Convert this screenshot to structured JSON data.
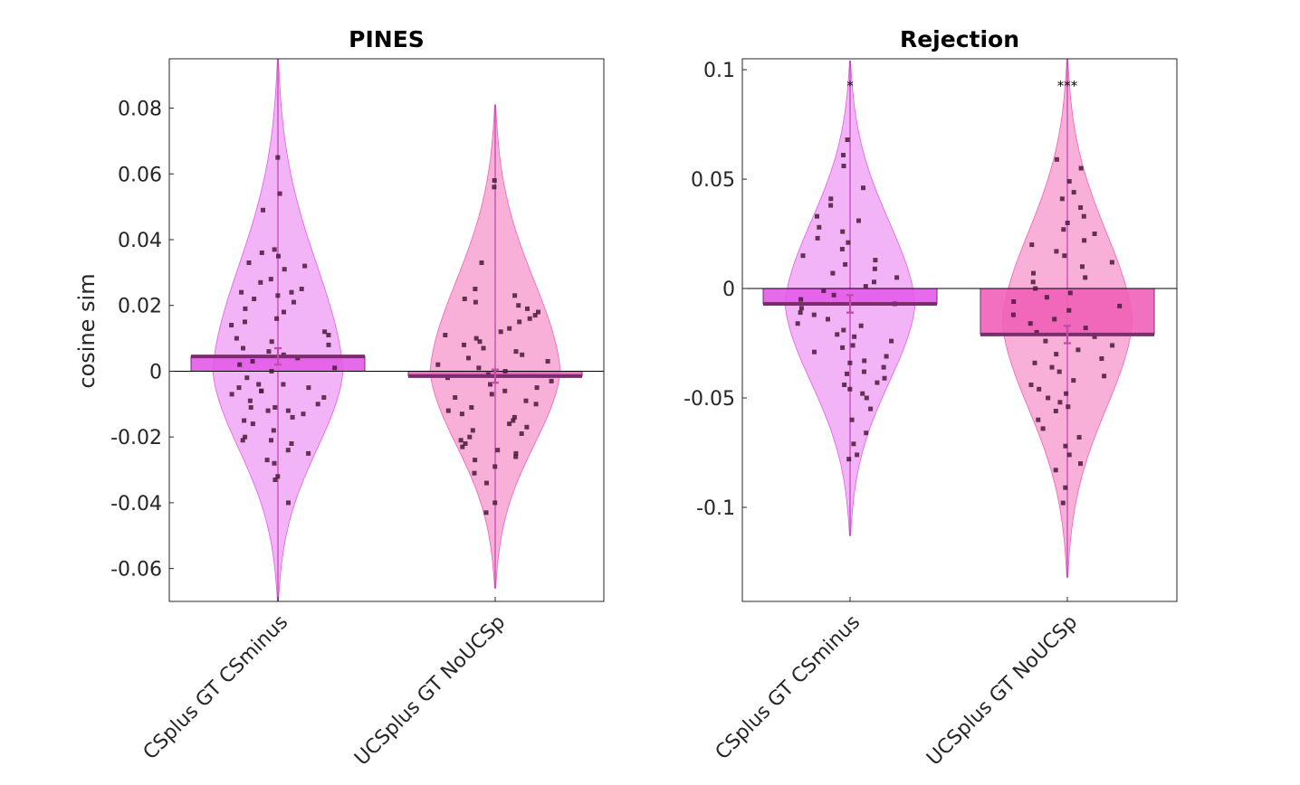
{
  "chart_data": [
    {
      "type": "bar",
      "title": "PINES",
      "ylabel": "cosine sim",
      "xlabel": "",
      "ylim": [
        -0.07,
        0.095
      ],
      "yticks": [
        -0.06,
        -0.04,
        -0.02,
        0,
        0.02,
        0.04,
        0.06,
        0.08
      ],
      "ytick_labels": [
        "-0.06",
        "-0.04",
        "-0.02",
        "0",
        "0.02",
        "0.04",
        "0.06",
        "0.08"
      ],
      "categories": [
        "CSplus GT CSminus",
        "UCSplus GT NoUCSp"
      ],
      "values": [
        0.0045,
        -0.0015
      ],
      "sem": [
        0.0025,
        0.002
      ],
      "significance": [
        "",
        ""
      ],
      "bar_colors": [
        "#e35be9",
        "#f060b8"
      ],
      "violin_colors": [
        "#f2b4f6",
        "#f8b0d8"
      ],
      "violin_range": [
        [
          -0.07,
          0.095
        ],
        [
          -0.066,
          0.081
        ]
      ],
      "violin_peak_y": [
        0.0,
        0.0
      ],
      "points": [
        [
          0.065,
          0.054,
          0.049,
          0.036,
          0.037,
          0.035,
          0.033,
          0.032,
          0.031,
          0.028,
          0.027,
          0.025,
          0.024,
          0.024,
          0.023,
          0.022,
          0.021,
          0.019,
          0.018,
          0.016,
          0.015,
          0.014,
          0.012,
          0.011,
          0.01,
          0.009,
          0.008,
          0.007,
          0.006,
          0.005,
          0.004,
          0.003,
          0.002,
          0.001,
          0.0,
          -0.002,
          -0.004,
          -0.004,
          -0.005,
          -0.005,
          -0.006,
          -0.006,
          -0.007,
          -0.008,
          -0.009,
          -0.01,
          -0.011,
          -0.011,
          -0.012,
          -0.012,
          -0.013,
          -0.014,
          -0.015,
          -0.016,
          -0.018,
          -0.02,
          -0.021,
          -0.021,
          -0.022,
          -0.024,
          -0.025,
          -0.027,
          -0.028,
          -0.032,
          -0.033,
          -0.04
        ],
        [
          0.058,
          0.056,
          0.033,
          0.025,
          0.023,
          0.022,
          0.021,
          0.02,
          0.019,
          0.018,
          0.017,
          0.016,
          0.015,
          0.013,
          0.012,
          0.011,
          0.01,
          0.009,
          0.008,
          0.007,
          0.006,
          0.005,
          0.004,
          0.003,
          0.002,
          0.001,
          0.0,
          -0.001,
          -0.002,
          -0.003,
          -0.004,
          -0.005,
          -0.006,
          -0.007,
          -0.008,
          -0.009,
          -0.01,
          -0.011,
          -0.012,
          -0.013,
          -0.014,
          -0.015,
          -0.016,
          -0.017,
          -0.018,
          -0.019,
          -0.02,
          -0.021,
          -0.022,
          -0.023,
          -0.024,
          -0.025,
          -0.026,
          -0.027,
          -0.029,
          -0.031,
          -0.034,
          -0.04,
          -0.043
        ]
      ]
    },
    {
      "type": "bar",
      "title": "Rejection",
      "ylabel": "",
      "xlabel": "",
      "ylim": [
        -0.143,
        0.105
      ],
      "yticks": [
        -0.1,
        -0.05,
        0,
        0.05,
        0.1
      ],
      "ytick_labels": [
        "-0.1",
        "-0.05",
        "0",
        "0.05",
        "0.1"
      ],
      "categories": [
        "CSplus GT CSminus",
        "UCSplus GT NoUCSp"
      ],
      "values": [
        -0.007,
        -0.021
      ],
      "sem": [
        0.004,
        0.004
      ],
      "significance": [
        "*",
        "***"
      ],
      "bar_colors": [
        "#e35be9",
        "#f060b8"
      ],
      "violin_colors": [
        "#f2b4f6",
        "#f8b0d8"
      ],
      "violin_range": [
        [
          -0.113,
          0.104
        ],
        [
          -0.132,
          0.105
        ]
      ],
      "violin_peak_y": [
        -0.007,
        -0.015
      ],
      "points": [
        [
          0.068,
          0.061,
          0.056,
          0.046,
          0.041,
          0.038,
          0.033,
          0.031,
          0.028,
          0.026,
          0.023,
          0.021,
          0.018,
          0.015,
          0.013,
          0.011,
          0.009,
          0.007,
          0.005,
          0.003,
          0.001,
          -0.001,
          -0.003,
          -0.005,
          -0.007,
          -0.009,
          -0.011,
          -0.012,
          -0.014,
          -0.016,
          -0.017,
          -0.019,
          -0.021,
          -0.022,
          -0.024,
          -0.026,
          -0.027,
          -0.029,
          -0.031,
          -0.033,
          -0.034,
          -0.036,
          -0.038,
          -0.039,
          -0.041,
          -0.043,
          -0.044,
          -0.046,
          -0.048,
          -0.05,
          -0.055,
          -0.06,
          -0.066,
          -0.071,
          -0.076,
          -0.078
        ],
        [
          0.059,
          0.055,
          0.049,
          0.044,
          0.041,
          0.037,
          0.033,
          0.03,
          0.027,
          0.025,
          0.022,
          0.02,
          0.017,
          0.015,
          0.012,
          0.01,
          0.007,
          0.005,
          0.003,
          0.0,
          -0.002,
          -0.004,
          -0.006,
          -0.008,
          -0.01,
          -0.012,
          -0.014,
          -0.016,
          -0.018,
          -0.02,
          -0.022,
          -0.024,
          -0.026,
          -0.028,
          -0.03,
          -0.032,
          -0.034,
          -0.036,
          -0.038,
          -0.04,
          -0.042,
          -0.044,
          -0.046,
          -0.048,
          -0.05,
          -0.052,
          -0.054,
          -0.056,
          -0.06,
          -0.064,
          -0.068,
          -0.072,
          -0.076,
          -0.08,
          -0.083,
          -0.091,
          -0.098
        ]
      ]
    }
  ]
}
